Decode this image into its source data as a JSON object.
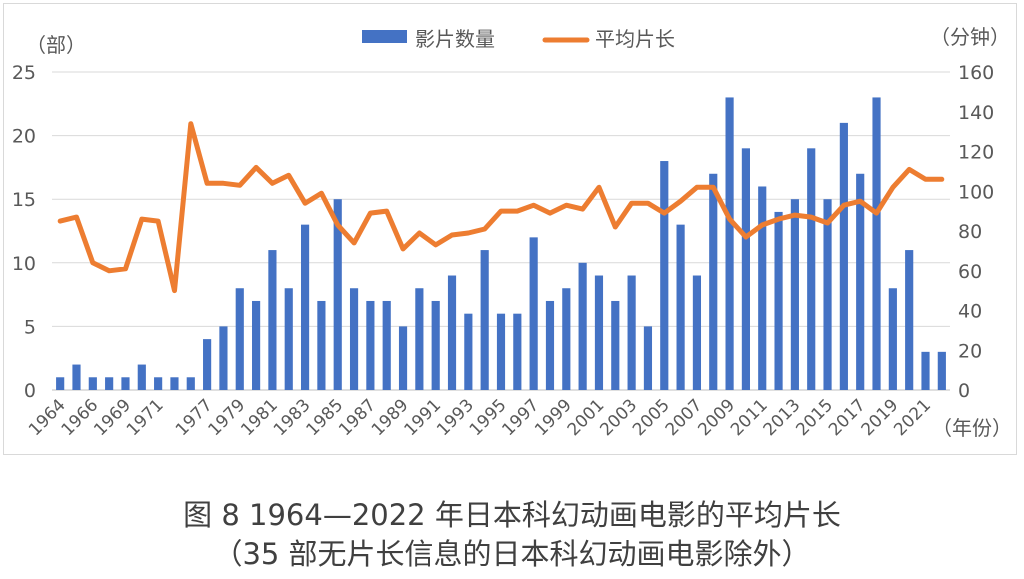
{
  "chart_data": {
    "type": "bar+line",
    "legend_position": "top",
    "grid": "horizontal",
    "left_axis": {
      "label": "（部）",
      "ylim": [
        0,
        25
      ],
      "ticks": [
        0,
        5,
        10,
        15,
        20,
        25
      ]
    },
    "right_axis": {
      "label": "（分钟）",
      "ylim": [
        0,
        160
      ],
      "ticks": [
        0,
        20,
        40,
        60,
        80,
        100,
        120,
        140,
        160
      ]
    },
    "x_axis_label": "（年份）",
    "x_tick_labels": [
      "1964",
      "1966",
      "1969",
      "1971",
      "1977",
      "1979",
      "1981",
      "1983",
      "1985",
      "1987",
      "1989",
      "1991",
      "1993",
      "1995",
      "1997",
      "1999",
      "2001",
      "2003",
      "2005",
      "2007",
      "2009",
      "2011",
      "2013",
      "2015",
      "2017",
      "2019",
      "2021"
    ],
    "categories": [
      "1964",
      "1965",
      "1966",
      "1968",
      "1969",
      "1970",
      "1971",
      "1972",
      "1976",
      "1977",
      "1978",
      "1979",
      "1980",
      "1981",
      "1982",
      "1983",
      "1984",
      "1985",
      "1986",
      "1987",
      "1988",
      "1989",
      "1990",
      "1991",
      "1992",
      "1993",
      "1994",
      "1995",
      "1996",
      "1997",
      "1998",
      "1999",
      "2000",
      "2001",
      "2002",
      "2003",
      "2004",
      "2005",
      "2006",
      "2007",
      "2008",
      "2009",
      "2010",
      "2011",
      "2012",
      "2013",
      "2014",
      "2015",
      "2016",
      "2017",
      "2018",
      "2019",
      "2020",
      "2021",
      "2022"
    ],
    "series": [
      {
        "name": "影片数量",
        "type": "bar",
        "axis": "left",
        "color": "#4472C4",
        "values": [
          1,
          2,
          1,
          1,
          1,
          2,
          1,
          1,
          1,
          4,
          5,
          8,
          7,
          11,
          8,
          13,
          7,
          15,
          8,
          7,
          7,
          5,
          8,
          7,
          9,
          6,
          11,
          6,
          6,
          12,
          7,
          8,
          10,
          9,
          7,
          9,
          5,
          18,
          13,
          9,
          17,
          23,
          19,
          16,
          14,
          15,
          19,
          15,
          21,
          17,
          23,
          8,
          11,
          3,
          3
        ]
      },
      {
        "name": "平均片长",
        "type": "line",
        "axis": "right",
        "color": "#ED7D31",
        "values": [
          85,
          87,
          64,
          60,
          61,
          86,
          85,
          50,
          134,
          104,
          104,
          103,
          112,
          104,
          108,
          94,
          99,
          83,
          74,
          89,
          90,
          71,
          79,
          73,
          78,
          79,
          81,
          90,
          90,
          93,
          89,
          93,
          91,
          102,
          82,
          94,
          94,
          89,
          95,
          102,
          102,
          86,
          77,
          83,
          86,
          88,
          87,
          84,
          93,
          95,
          89,
          102,
          111,
          106,
          106
        ]
      }
    ]
  },
  "caption": {
    "line1": "图 8  1964—2022 年日本科幻动画电影的平均片长",
    "line2": "（35 部无片长信息的日本科幻动画电影除外）"
  }
}
